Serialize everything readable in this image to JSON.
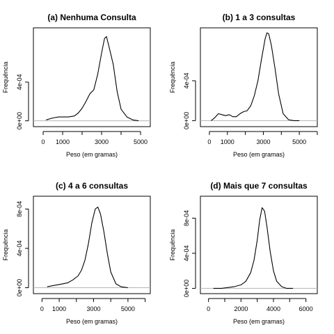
{
  "chart_data": [
    {
      "type": "line",
      "title": "(a) Nenhuma Consulta",
      "xlabel": "Peso (em gramas)",
      "ylabel": "Frequência",
      "xlim": [
        -500,
        5500
      ],
      "ylim": [
        -6e-05,
        0.00096
      ],
      "xticks": [
        {
          "v": 0,
          "l": "0"
        },
        {
          "v": 1000,
          "l": "1000"
        },
        {
          "v": 3000,
          "l": "3000"
        },
        {
          "v": 5000,
          "l": "5000"
        }
      ],
      "xtick_marks": [
        0,
        1000,
        2000,
        3000,
        4000,
        5000
      ],
      "yticks": [
        {
          "v": 0,
          "l": "0e+00"
        },
        {
          "v": 0.0004,
          "l": "4e-04"
        }
      ],
      "series": [
        {
          "x": [
            150,
            500,
            800,
            1000,
            1300,
            1600,
            1800,
            2000,
            2200,
            2400,
            2600,
            2800,
            3000,
            3150,
            3250,
            3400,
            3600,
            3800,
            4000,
            4300,
            4600,
            4900
          ],
          "y": [
            1e-05,
            3e-05,
            4e-05,
            4e-05,
            4e-05,
            5e-05,
            8e-05,
            0.00013,
            0.0002,
            0.00028,
            0.00032,
            0.00048,
            0.0007,
            0.00085,
            0.00087,
            0.00075,
            0.00058,
            0.0003,
            0.00012,
            4e-05,
            1e-05,
            0.0
          ]
        }
      ]
    },
    {
      "type": "line",
      "title": "(b) 1 a 3 consultas",
      "xlabel": "Peso (em gramas)",
      "ylabel": "Frequência",
      "xlim": [
        -500,
        6000
      ],
      "ylim": [
        -6e-05,
        0.00093
      ],
      "xticks": [
        {
          "v": 0,
          "l": "0"
        },
        {
          "v": 1000,
          "l": "1000"
        },
        {
          "v": 3000,
          "l": "3000"
        },
        {
          "v": 5000,
          "l": "5000"
        }
      ],
      "xtick_marks": [
        0,
        1000,
        2000,
        3000,
        4000,
        5000,
        6000
      ],
      "yticks": [
        {
          "v": 0,
          "l": "0e+00"
        },
        {
          "v": 0.0004,
          "l": "4e-04"
        }
      ],
      "series": [
        {
          "x": [
            100,
            300,
            500,
            700,
            900,
            1100,
            1300,
            1500,
            1700,
            1900,
            2100,
            2300,
            2500,
            2700,
            2900,
            3100,
            3200,
            3300,
            3450,
            3650,
            3850,
            4100,
            4400,
            4700,
            5000
          ],
          "y": [
            0.0,
            3e-05,
            7e-05,
            6e-05,
            5e-05,
            6e-05,
            4e-05,
            4e-05,
            7e-05,
            9e-05,
            0.0001,
            0.00015,
            0.00025,
            0.0004,
            0.00062,
            0.00082,
            0.00088,
            0.00087,
            0.00075,
            0.00052,
            0.00027,
            7e-05,
            1e-05,
            0.0,
            0.0
          ]
        }
      ]
    },
    {
      "type": "line",
      "title": "(c) 4 a 6 consultas",
      "xlabel": "Peso (em gramas)",
      "ylabel": "Frequência",
      "xlim": [
        -500,
        6300
      ],
      "ylim": [
        -6e-05,
        0.00093
      ],
      "xticks": [
        {
          "v": 0,
          "l": "0"
        },
        {
          "v": 1000,
          "l": "1000"
        },
        {
          "v": 3000,
          "l": "3000"
        },
        {
          "v": 5000,
          "l": "5000"
        }
      ],
      "xtick_marks": [
        0,
        1000,
        2000,
        3000,
        4000,
        5000,
        6000
      ],
      "yticks": [
        {
          "v": 0,
          "l": "0e+00"
        },
        {
          "v": 0.0004,
          "l": "4e-04"
        },
        {
          "v": 0.0008,
          "l": "8e-04"
        }
      ],
      "series": [
        {
          "x": [
            300,
            600,
            900,
            1200,
            1500,
            1800,
            2100,
            2300,
            2500,
            2700,
            2900,
            3100,
            3250,
            3400,
            3600,
            3800,
            4000,
            4300,
            4600,
            5000
          ],
          "y": [
            1e-05,
            2e-05,
            3e-05,
            4e-05,
            5e-05,
            8e-05,
            0.00012,
            0.00018,
            0.00028,
            0.00045,
            0.00066,
            0.0008,
            0.00082,
            0.00075,
            0.00057,
            0.00035,
            0.00016,
            4e-05,
            1e-05,
            0.0
          ]
        }
      ]
    },
    {
      "type": "line",
      "title": "(d) Mais que 7 consultas",
      "xlabel": "Peso (em gramas)",
      "ylabel": "Frequência",
      "xlim": [
        -500,
        6700
      ],
      "ylim": [
        -6e-05,
        0.00105
      ],
      "xticks": [
        {
          "v": 0,
          "l": "0"
        },
        {
          "v": 2000,
          "l": "2000"
        },
        {
          "v": 4000,
          "l": "4000"
        },
        {
          "v": 6000,
          "l": "6000"
        }
      ],
      "xtick_marks": [
        0,
        1000,
        2000,
        3000,
        4000,
        5000,
        6000
      ],
      "yticks": [
        {
          "v": 0,
          "l": "0e+00"
        },
        {
          "v": 0.0004,
          "l": "4e-04"
        },
        {
          "v": 0.0008,
          "l": "8e-04"
        }
      ],
      "series": [
        {
          "x": [
            300,
            500,
            800,
            1200,
            1600,
            2000,
            2300,
            2600,
            2800,
            3000,
            3150,
            3300,
            3450,
            3600,
            3800,
            4000,
            4200,
            4500,
            4800,
            5200
          ],
          "y": [
            0.0,
            0.0,
            0.0,
            1e-05,
            2e-05,
            4e-05,
            8e-05,
            0.00018,
            0.00032,
            0.00055,
            0.00078,
            0.00092,
            0.00088,
            0.0007,
            0.00042,
            0.0002,
            8e-05,
            2e-05,
            0.0,
            0.0
          ]
        }
      ]
    }
  ]
}
